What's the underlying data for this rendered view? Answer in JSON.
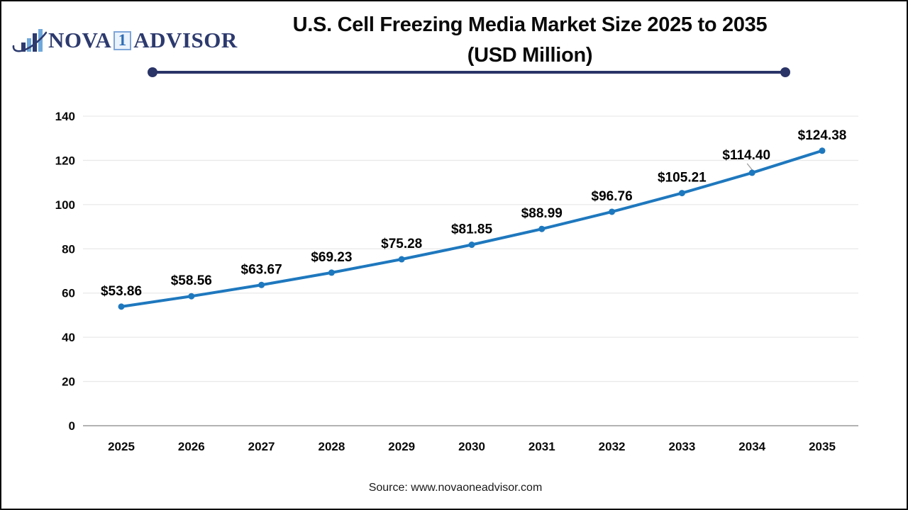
{
  "logo": {
    "icon": "bar-chart-swoosh-icon",
    "name_part1": "NOVA",
    "name_part2": "1",
    "name_part3": "ADVISOR"
  },
  "title": {
    "line1": "U.S. Cell Freezing Media Market Size 2025 to 2035",
    "line2": "(USD Million)"
  },
  "source": "Source: www.novaoneadvisor.com",
  "colors": {
    "line": "#1e78be",
    "marker": "#1e78be",
    "navy_accent": "#2a3467",
    "logo_navy": "#2d3a6e",
    "logo_blue": "#6fa8dc",
    "gridline": "#e9e9e9",
    "axis_baseline": "#b3b3b3",
    "data_label": "#000000",
    "callout_line": "#999999"
  },
  "chart_data": {
    "type": "line",
    "title": "U.S. Cell Freezing Media Market Size 2025 to 2035 (USD Million)",
    "xlabel": "",
    "ylabel": "",
    "categories": [
      "2025",
      "2026",
      "2027",
      "2028",
      "2029",
      "2030",
      "2031",
      "2032",
      "2033",
      "2034",
      "2035"
    ],
    "series": [
      {
        "name": "U.S. Cell Freezing Media Market Size (USD Million)",
        "values": [
          53.86,
          58.56,
          63.67,
          69.23,
          75.28,
          81.85,
          88.99,
          96.76,
          105.21,
          114.4,
          124.38
        ]
      }
    ],
    "data_labels": [
      "$53.86",
      "$58.56",
      "$63.67",
      "$69.23",
      "$75.28",
      "$81.85",
      "$88.99",
      "$96.76",
      "$105.21",
      "$114.40",
      "$124.38"
    ],
    "yticks": [
      0,
      20,
      40,
      60,
      80,
      100,
      120,
      140
    ],
    "ylim": [
      0,
      140
    ],
    "grid": true,
    "legend": "none",
    "callout_category": "2034"
  }
}
